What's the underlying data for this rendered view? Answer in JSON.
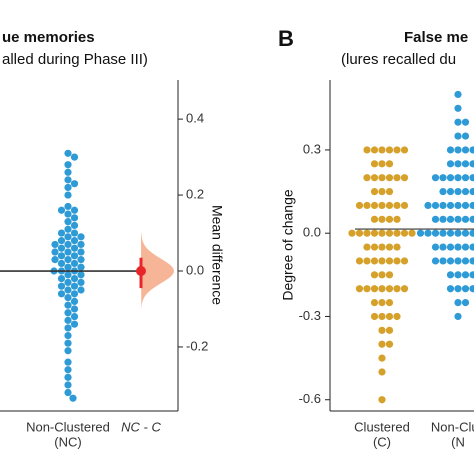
{
  "chart_data": [
    {
      "type": "estimation",
      "title": "ue memories",
      "subtitle": "alled during Phase III)",
      "categories": [
        [
          "Non-Clustered",
          "(NC)"
        ],
        [
          "NC - C"
        ]
      ],
      "groups": [
        {
          "color": "#2f9bd6",
          "values": [
            0.31,
            0.3,
            0.28,
            0.26,
            0.24,
            0.23,
            0.22,
            0.2,
            0.17,
            0.16,
            0.16,
            0.15,
            0.14,
            0.13,
            0.12,
            0.11,
            0.1,
            0.1,
            0.09,
            0.09,
            0.08,
            0.08,
            0.07,
            0.07,
            0.07,
            0.06,
            0.06,
            0.05,
            0.05,
            0.05,
            0.04,
            0.04,
            0.03,
            0.03,
            0.03,
            0.02,
            0.02,
            0.01,
            0.01,
            0.0,
            0.0,
            0.0,
            -0.01,
            -0.01,
            -0.02,
            -0.02,
            -0.03,
            -0.03,
            -0.04,
            -0.04,
            -0.05,
            -0.05,
            -0.06,
            -0.06,
            -0.07,
            -0.08,
            -0.09,
            -0.1,
            -0.11,
            -0.12,
            -0.13,
            -0.14,
            -0.15,
            -0.17,
            -0.19,
            -0.21,
            -0.24,
            -0.26,
            -0.28,
            -0.3,
            -0.32,
            -0.335
          ]
        }
      ],
      "mean_line": 0.0,
      "difference": {
        "value": 0.0,
        "ci": [
          -0.045,
          0.035
        ],
        "color": "#e8262a",
        "shade": "#f7b597"
      },
      "y2label": "Mean difference",
      "y2lim": [
        -0.366,
        0.503
      ],
      "y2ticks": [
        0.4,
        0.2,
        {
          "value": 0,
          "label": "0.0"
        },
        -0.2
      ]
    },
    {
      "type": "swarm",
      "panel_label": "B",
      "title": "False me",
      "subtitle": "(lures recalled du",
      "ylabel": "Degree of change",
      "categories": [
        [
          "Clustered",
          "(C)"
        ],
        [
          "Non-Clus",
          "(N"
        ]
      ],
      "groups": [
        {
          "color": "#d6a12a",
          "values": [
            0.3,
            0.3,
            0.3,
            0.3,
            0.3,
            0.3,
            0.25,
            0.25,
            0.25,
            0.2,
            0.2,
            0.2,
            0.2,
            0.2,
            0.2,
            0.15,
            0.15,
            0.15,
            0.1,
            0.1,
            0.1,
            0.1,
            0.1,
            0.1,
            0.1,
            0.05,
            0.05,
            0.05,
            0.05,
            0,
            0,
            0,
            0,
            0,
            0,
            0,
            0,
            0,
            -0.05,
            -0.05,
            -0.05,
            -0.05,
            -0.05,
            -0.1,
            -0.1,
            -0.1,
            -0.1,
            -0.1,
            -0.1,
            -0.1,
            -0.15,
            -0.15,
            -0.15,
            -0.2,
            -0.2,
            -0.2,
            -0.2,
            -0.2,
            -0.2,
            -0.2,
            -0.25,
            -0.25,
            -0.25,
            -0.3,
            -0.3,
            -0.3,
            -0.3,
            -0.35,
            -0.35,
            -0.4,
            -0.4,
            -0.45,
            -0.5,
            -0.6
          ]
        },
        {
          "color": "#2f9bd6",
          "values": [
            0.5,
            0.45,
            0.4,
            0.4,
            0.35,
            0.35,
            0.3,
            0.3,
            0.3,
            0.3,
            0.25,
            0.25,
            0.25,
            0.25,
            0.2,
            0.2,
            0.2,
            0.2,
            0.2,
            0.2,
            0.2,
            0.15,
            0.15,
            0.15,
            0.15,
            0.15,
            0.15,
            0.1,
            0.1,
            0.1,
            0.1,
            0.1,
            0.1,
            0.1,
            0.1,
            0.1,
            0.05,
            0.05,
            0.05,
            0.05,
            0.05,
            0.05,
            0.05,
            0.05,
            0,
            0,
            0,
            0,
            0,
            0,
            0,
            0,
            0,
            0,
            0,
            -0.05,
            -0.05,
            -0.05,
            -0.05,
            -0.05,
            -0.05,
            -0.05,
            -0.1,
            -0.1,
            -0.1,
            -0.1,
            -0.1,
            -0.1,
            -0.1,
            -0.15,
            -0.15,
            -0.15,
            -0.15,
            -0.2,
            -0.2,
            -0.2,
            -0.2,
            -0.25,
            -0.25,
            -0.3
          ]
        }
      ],
      "mean_line": 0.015,
      "ylim": [
        -0.637,
        0.552
      ],
      "yticks": [
        0.3,
        {
          "value": 0,
          "label": "0.0"
        },
        -0.3,
        -0.6
      ]
    }
  ]
}
